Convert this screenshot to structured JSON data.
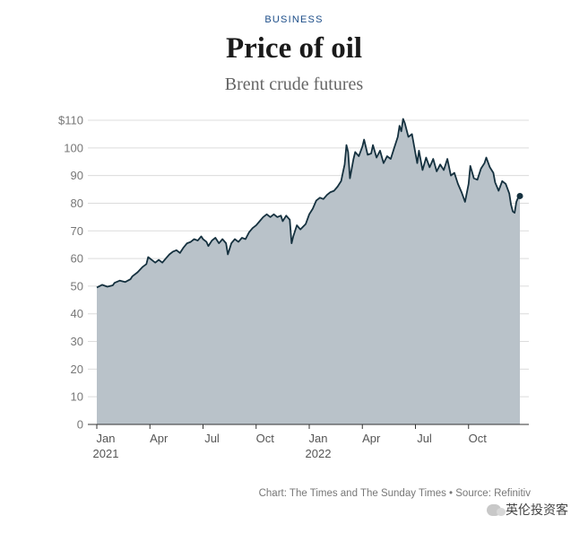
{
  "header": {
    "kicker": "BUSINESS",
    "title": "Price of oil",
    "subtitle": "Brent crude futures"
  },
  "footer": {
    "source": "Chart: The Times and The Sunday Times • Source: Refinitiv"
  },
  "watermark": {
    "text": "英伦投资客"
  },
  "colors": {
    "area_fill": "#b9c2c9",
    "line": "#15313f",
    "grid": "#dcdcdc",
    "axis": "#333333",
    "kicker": "#1d4e89"
  },
  "chart_data": {
    "type": "area",
    "title": "Price of oil",
    "subtitle": "Brent crude futures",
    "xlabel": "",
    "ylabel": "",
    "ylim": [
      0,
      110
    ],
    "yticks": [
      0,
      10,
      20,
      30,
      40,
      50,
      60,
      70,
      80,
      90,
      100,
      110
    ],
    "ytick_labels": [
      "0",
      "10",
      "20",
      "30",
      "40",
      "50",
      "60",
      "70",
      "80",
      "90",
      "100",
      "$110"
    ],
    "xlim": [
      0,
      24.1
    ],
    "xticks": [
      {
        "month": 0,
        "label": "Jan",
        "sublabel": "2021"
      },
      {
        "month": 3,
        "label": "Apr",
        "sublabel": ""
      },
      {
        "month": 6,
        "label": "Jul",
        "sublabel": ""
      },
      {
        "month": 9,
        "label": "Oct",
        "sublabel": ""
      },
      {
        "month": 12,
        "label": "Jan",
        "sublabel": "2022"
      },
      {
        "month": 15,
        "label": "Apr",
        "sublabel": ""
      },
      {
        "month": 18,
        "label": "Jul",
        "sublabel": ""
      },
      {
        "month": 21,
        "label": "Oct",
        "sublabel": ""
      }
    ],
    "x_unit": "months since 1 Jan 2021",
    "series": [
      {
        "name": "Brent crude futures ($)",
        "points": [
          [
            0.0,
            49.5
          ],
          [
            0.3,
            50.5
          ],
          [
            0.6,
            49.8
          ],
          [
            0.9,
            50.3
          ],
          [
            1.0,
            51.2
          ],
          [
            1.3,
            52.0
          ],
          [
            1.6,
            51.5
          ],
          [
            1.9,
            52.5
          ],
          [
            2.0,
            53.5
          ],
          [
            2.3,
            55.0
          ],
          [
            2.6,
            57.0
          ],
          [
            2.8,
            58.0
          ],
          [
            2.9,
            60.5
          ],
          [
            3.1,
            59.5
          ],
          [
            3.3,
            58.5
          ],
          [
            3.5,
            59.5
          ],
          [
            3.7,
            58.5
          ],
          [
            3.9,
            60.0
          ],
          [
            4.1,
            61.5
          ],
          [
            4.3,
            62.5
          ],
          [
            4.5,
            63.0
          ],
          [
            4.7,
            62.0
          ],
          [
            4.9,
            64.0
          ],
          [
            5.1,
            65.5
          ],
          [
            5.3,
            66.0
          ],
          [
            5.5,
            67.0
          ],
          [
            5.7,
            66.5
          ],
          [
            5.9,
            68.0
          ],
          [
            6.0,
            67.0
          ],
          [
            6.2,
            66.0
          ],
          [
            6.3,
            64.5
          ],
          [
            6.5,
            66.5
          ],
          [
            6.7,
            67.5
          ],
          [
            6.9,
            65.5
          ],
          [
            7.1,
            67.0
          ],
          [
            7.3,
            65.5
          ],
          [
            7.4,
            61.5
          ],
          [
            7.6,
            65.5
          ],
          [
            7.8,
            67.0
          ],
          [
            8.0,
            66.0
          ],
          [
            8.2,
            67.5
          ],
          [
            8.4,
            67.0
          ],
          [
            8.6,
            69.5
          ],
          [
            8.8,
            71.0
          ],
          [
            9.0,
            72.0
          ],
          [
            9.2,
            73.5
          ],
          [
            9.4,
            75.0
          ],
          [
            9.6,
            76.0
          ],
          [
            9.8,
            75.0
          ],
          [
            10.0,
            76.0
          ],
          [
            10.2,
            75.0
          ],
          [
            10.4,
            75.5
          ],
          [
            10.5,
            73.5
          ],
          [
            10.7,
            75.5
          ],
          [
            10.9,
            74.0
          ],
          [
            11.0,
            65.5
          ],
          [
            11.1,
            68.0
          ],
          [
            11.3,
            72.0
          ],
          [
            11.5,
            70.5
          ],
          [
            11.8,
            72.5
          ],
          [
            12.0,
            76.0
          ],
          [
            12.2,
            78.0
          ],
          [
            12.4,
            81.0
          ],
          [
            12.6,
            82.0
          ],
          [
            12.8,
            81.5
          ],
          [
            13.0,
            83.0
          ],
          [
            13.2,
            84.0
          ],
          [
            13.4,
            84.5
          ],
          [
            13.6,
            86.0
          ],
          [
            13.8,
            88.0
          ],
          [
            13.9,
            91.0
          ],
          [
            14.0,
            94.0
          ],
          [
            14.1,
            101.0
          ],
          [
            14.2,
            98.5
          ],
          [
            14.3,
            89.0
          ],
          [
            14.5,
            96.0
          ],
          [
            14.6,
            98.5
          ],
          [
            14.8,
            97.0
          ],
          [
            15.0,
            100.5
          ],
          [
            15.1,
            103.0
          ],
          [
            15.3,
            97.5
          ],
          [
            15.5,
            98.0
          ],
          [
            15.6,
            101.0
          ],
          [
            15.8,
            96.5
          ],
          [
            16.0,
            99.0
          ],
          [
            16.2,
            94.5
          ],
          [
            16.4,
            97.0
          ],
          [
            16.6,
            96.0
          ],
          [
            16.8,
            100.0
          ],
          [
            17.0,
            104.0
          ],
          [
            17.1,
            108.0
          ],
          [
            17.2,
            106.0
          ],
          [
            17.3,
            110.5
          ],
          [
            17.4,
            109.0
          ],
          [
            17.6,
            104.0
          ],
          [
            17.8,
            105.0
          ],
          [
            18.0,
            98.0
          ],
          [
            18.1,
            94.5
          ],
          [
            18.2,
            99.0
          ],
          [
            18.4,
            92.0
          ],
          [
            18.6,
            96.5
          ],
          [
            18.8,
            93.0
          ],
          [
            19.0,
            96.0
          ],
          [
            19.2,
            91.5
          ],
          [
            19.4,
            94.0
          ],
          [
            19.6,
            92.0
          ],
          [
            19.8,
            96.0
          ],
          [
            20.0,
            90.0
          ],
          [
            20.2,
            91.0
          ],
          [
            20.4,
            87.0
          ],
          [
            20.6,
            84.0
          ],
          [
            20.8,
            80.5
          ],
          [
            21.0,
            87.0
          ],
          [
            21.1,
            93.5
          ],
          [
            21.3,
            89.0
          ],
          [
            21.5,
            88.5
          ],
          [
            21.7,
            92.5
          ],
          [
            21.9,
            94.5
          ],
          [
            22.0,
            96.5
          ],
          [
            22.2,
            93.0
          ],
          [
            22.4,
            91.0
          ],
          [
            22.5,
            87.5
          ],
          [
            22.7,
            84.5
          ],
          [
            22.9,
            88.0
          ],
          [
            23.1,
            87.0
          ],
          [
            23.3,
            83.5
          ],
          [
            23.4,
            79.5
          ],
          [
            23.5,
            77.0
          ],
          [
            23.6,
            76.5
          ],
          [
            23.7,
            80.5
          ],
          [
            23.8,
            82.0
          ],
          [
            23.9,
            82.6
          ]
        ],
        "last_value": 82.6
      }
    ]
  }
}
